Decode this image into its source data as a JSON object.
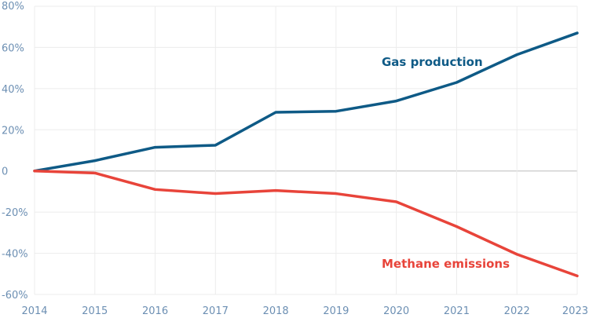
{
  "chart_data": {
    "type": "line",
    "title": "",
    "xlabel": "",
    "ylabel": "",
    "x": [
      2014,
      2015,
      2016,
      2017,
      2018,
      2019,
      2020,
      2021,
      2022,
      2023
    ],
    "x_tick_labels": [
      "2014",
      "2015",
      "2016",
      "2017",
      "2018",
      "2019",
      "2020",
      "2021",
      "2022",
      "2023"
    ],
    "ylim": [
      -60,
      80
    ],
    "y_ticks": [
      80,
      60,
      40,
      20,
      0,
      -20,
      -40,
      -60
    ],
    "y_tick_labels": [
      "80%",
      "60%",
      "40%",
      "20%",
      "0",
      "-20%",
      "-40%",
      "-60%"
    ],
    "grid": true,
    "series": [
      {
        "name": "Gas production",
        "color": "#0e5a86",
        "values": [
          0,
          5,
          11.5,
          12.5,
          28.5,
          29,
          34,
          43,
          56.5,
          67
        ]
      },
      {
        "name": "Methane emissions",
        "color": "#e8443a",
        "values": [
          0,
          -1,
          -9,
          -11,
          -9.5,
          -11,
          -15,
          -27,
          -40.5,
          -51
        ]
      }
    ]
  }
}
